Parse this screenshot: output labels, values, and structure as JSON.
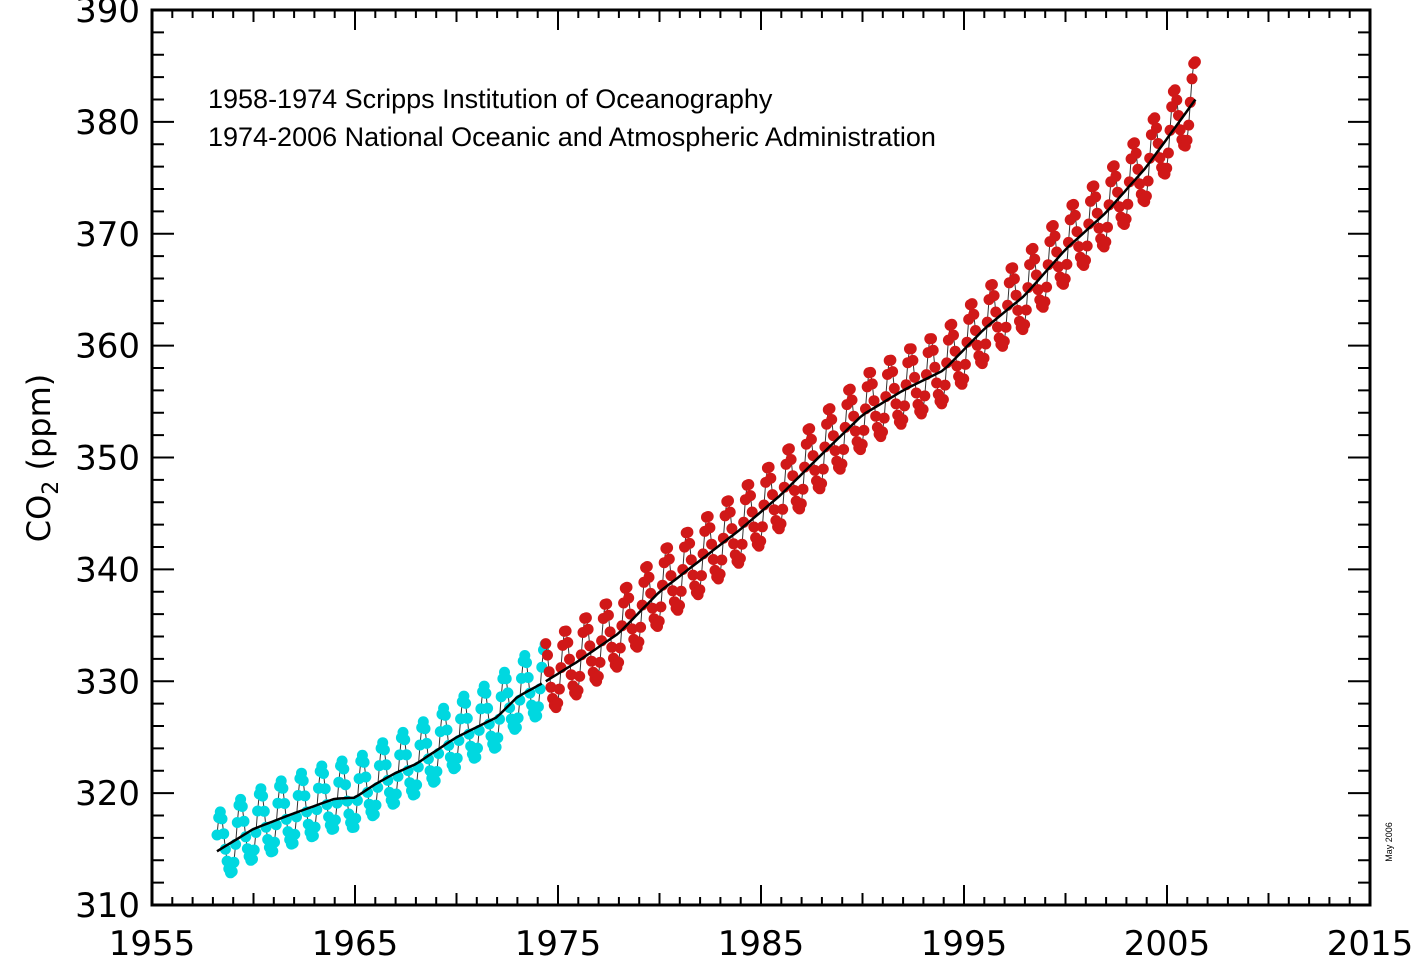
{
  "chart_data": {
    "type": "line",
    "title": "",
    "xlabel": "",
    "ylabel": {
      "prefix": "CO",
      "subscript": "2",
      "suffix": " (ppm)"
    },
    "xlim": [
      1955,
      2015
    ],
    "ylim": [
      310,
      390
    ],
    "x_ticks": [
      "1955",
      "1965",
      "1975",
      "1985",
      "1995",
      "2005",
      "2015"
    ],
    "y_ticks": [
      "310",
      "320",
      "330",
      "340",
      "350",
      "360",
      "370",
      "380",
      "390"
    ],
    "grid": false,
    "annotations": [
      "1958-1974 Scripps Institution of Oceanography",
      "1974-2006 National Oceanic and Atmospheric Administration"
    ],
    "date_note": "May 2006",
    "series": [
      {
        "key": "scripps",
        "color": "#00d8e0",
        "marker": "circle",
        "x_range": [
          1958.2,
          1974.4
        ],
        "seasonal_amplitude": 3.0,
        "trend_points": [
          [
            1958.2,
            314.8
          ],
          [
            1960,
            316.8
          ],
          [
            1962,
            318.2
          ],
          [
            1964,
            319.5
          ],
          [
            1965,
            319.6
          ],
          [
            1966,
            320.8
          ],
          [
            1967,
            321.8
          ],
          [
            1968,
            322.6
          ],
          [
            1970,
            325.0
          ],
          [
            1972,
            326.8
          ],
          [
            1973,
            328.6
          ],
          [
            1974.4,
            330.0
          ]
        ]
      },
      {
        "key": "noaa",
        "color": "#d01818",
        "marker": "circle",
        "x_range": [
          1974.4,
          2006.4
        ],
        "seasonal_amplitude": 3.2,
        "trend_points": [
          [
            1974.4,
            330.0
          ],
          [
            1976,
            331.8
          ],
          [
            1978,
            334.3
          ],
          [
            1980,
            338.0
          ],
          [
            1982,
            340.8
          ],
          [
            1984,
            343.6
          ],
          [
            1986,
            346.7
          ],
          [
            1988,
            350.3
          ],
          [
            1990,
            353.8
          ],
          [
            1992,
            356.0
          ],
          [
            1994,
            357.8
          ],
          [
            1996,
            361.5
          ],
          [
            1998,
            364.5
          ],
          [
            2000,
            368.6
          ],
          [
            2002,
            371.9
          ],
          [
            2004,
            376.0
          ],
          [
            2006.4,
            382.0
          ]
        ]
      }
    ],
    "trend_line": {
      "color": "#000000",
      "label": ""
    }
  }
}
